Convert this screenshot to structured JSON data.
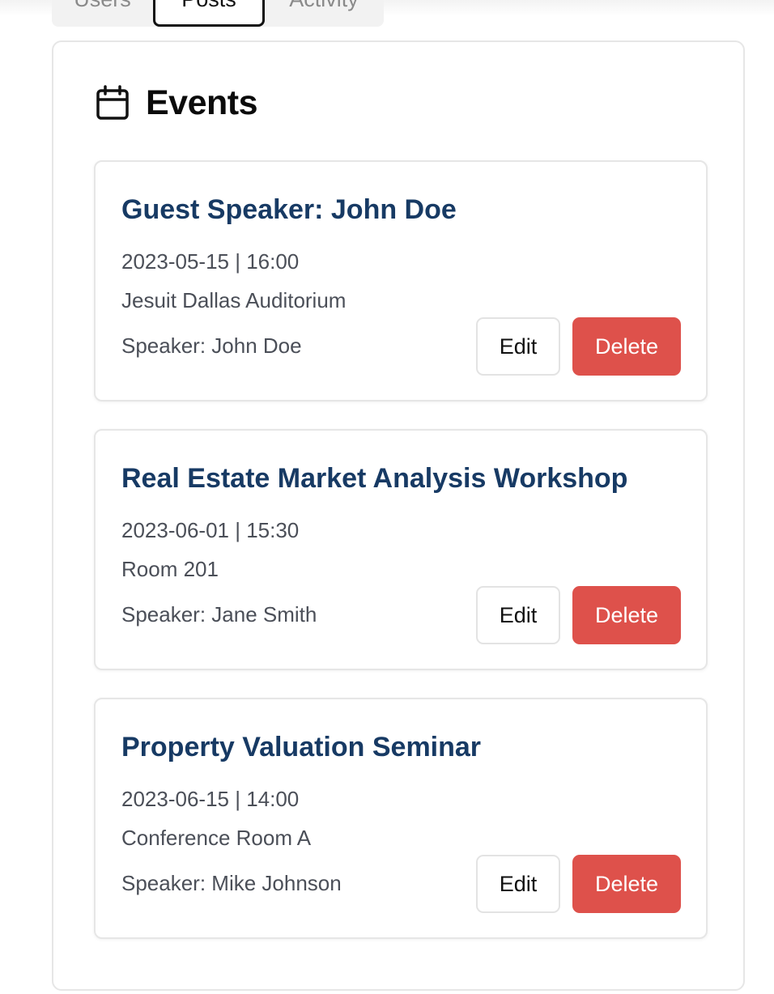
{
  "tabs": [
    {
      "label": "Users"
    },
    {
      "label": "Posts"
    },
    {
      "label": "Activity"
    }
  ],
  "panel": {
    "title": "Events",
    "icon": "calendar-icon"
  },
  "events": [
    {
      "title": "Guest Speaker: John Doe",
      "datetime": "2023-05-15 | 16:00",
      "location": "Jesuit Dallas Auditorium",
      "speaker": "Speaker: John Doe",
      "edit_label": "Edit",
      "delete_label": "Delete"
    },
    {
      "title": "Real Estate Market Analysis Workshop",
      "datetime": "2023-06-01 | 15:30",
      "location": "Room 201",
      "speaker": "Speaker: Jane Smith",
      "edit_label": "Edit",
      "delete_label": "Delete"
    },
    {
      "title": "Property Valuation Seminar",
      "datetime": "2023-06-15 | 14:00",
      "location": "Conference Room A",
      "speaker": "Speaker: Mike Johnson",
      "edit_label": "Edit",
      "delete_label": "Delete"
    }
  ],
  "colors": {
    "title": "#173a64",
    "delete": "#de514b",
    "muted_text": "#4b4f58"
  }
}
